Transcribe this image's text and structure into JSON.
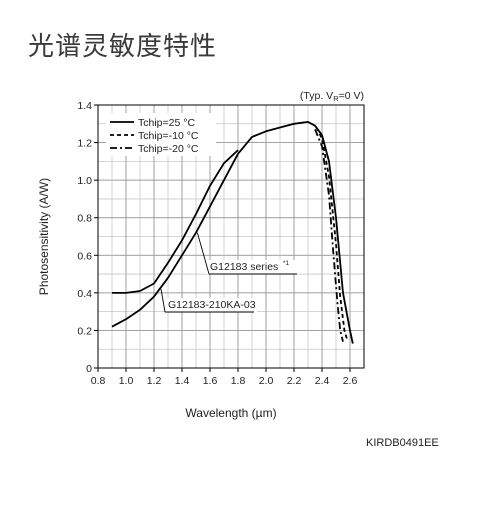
{
  "page": {
    "title": "光谱灵敏度特性",
    "figure_code": "KIRDB0491EE"
  },
  "chart_data": {
    "type": "line",
    "title": "",
    "condition": "(Typ. V",
    "condition_sub": "R",
    "condition_tail": "=0 V)",
    "xlabel": "Wavelength (µm)",
    "ylabel": "Photosensitivity (A/W)",
    "xlim": [
      0.8,
      2.7
    ],
    "ylim": [
      0,
      1.4
    ],
    "xticks": [
      0.8,
      1.0,
      1.2,
      1.4,
      1.6,
      1.8,
      2.0,
      2.2,
      2.4,
      2.6
    ],
    "xtick_labels": [
      "0.8",
      "1.0",
      "1.2",
      "1.4",
      "1.6",
      "1.8",
      "2.0",
      "2.2",
      "2.4",
      "2.6"
    ],
    "yticks": [
      0,
      0.2,
      0.4,
      0.6,
      0.8,
      1.0,
      1.2,
      1.4
    ],
    "ytick_labels": [
      "0",
      "0.2",
      "0.4",
      "0.6",
      "0.8",
      "1.0",
      "1.2",
      "1.4"
    ],
    "grid": true,
    "grid_minor_step": 0.1,
    "legend_position": "top-left",
    "series": [
      {
        "name": "Tchip=25 °C",
        "style": "solid",
        "color": "#000000",
        "x": [
          0.9,
          1.0,
          1.1,
          1.2,
          1.3,
          1.4,
          1.5,
          1.6,
          1.7,
          1.8,
          1.9,
          2.0,
          2.1,
          2.2,
          2.3,
          2.35,
          2.4,
          2.45,
          2.5,
          2.55,
          2.6,
          2.62
        ],
        "y": [
          0.22,
          0.26,
          0.31,
          0.38,
          0.48,
          0.6,
          0.72,
          0.86,
          1.0,
          1.14,
          1.23,
          1.26,
          1.28,
          1.3,
          1.31,
          1.29,
          1.24,
          1.1,
          0.8,
          0.4,
          0.2,
          0.13
        ]
      },
      {
        "name": "Tchip=-10 °C",
        "style": "dashed",
        "color": "#000000",
        "x": [
          2.36,
          2.4,
          2.45,
          2.5,
          2.53,
          2.56,
          2.58
        ],
        "y": [
          1.28,
          1.22,
          1.02,
          0.66,
          0.38,
          0.2,
          0.15
        ]
      },
      {
        "name": "Tchip=-20 °C",
        "style": "dashdot",
        "color": "#000000",
        "x": [
          2.35,
          2.4,
          2.45,
          2.48,
          2.51,
          2.53,
          2.55
        ],
        "y": [
          1.27,
          1.18,
          0.92,
          0.62,
          0.35,
          0.2,
          0.14
        ]
      },
      {
        "name": "G12183 series",
        "style": "solid",
        "color": "#000000",
        "x": [
          0.9,
          1.0,
          1.1,
          1.2,
          1.3,
          1.4,
          1.5,
          1.6,
          1.7,
          1.8
        ],
        "y": [
          0.4,
          0.4,
          0.41,
          0.45,
          0.56,
          0.68,
          0.82,
          0.97,
          1.09,
          1.16
        ]
      }
    ],
    "annotations": [
      {
        "text": "G12183 series",
        "superscript": "*1",
        "target_x": 1.51,
        "target_y": 0.72
      },
      {
        "text": "G12183-210KA-03",
        "target_x": 1.25,
        "target_y": 0.42
      }
    ]
  }
}
